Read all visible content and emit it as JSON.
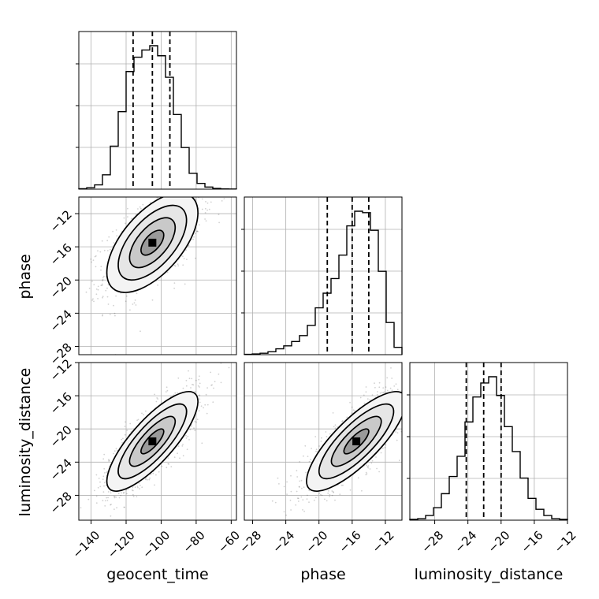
{
  "chart_data": {
    "type": "corner",
    "parameters": [
      {
        "name": "geocent_time",
        "label": "geocent_time",
        "range": [
          -147,
          -57
        ],
        "ticks": [
          -140,
          -120,
          -100,
          -80,
          -60
        ],
        "tick_labels": [
          "−140",
          "−120",
          "−100",
          "−80",
          "−60"
        ],
        "quantiles": [
          -116,
          -105,
          -95
        ]
      },
      {
        "name": "phase",
        "label": "phase",
        "range": [
          -29,
          -10
        ],
        "ticks": [
          -28,
          -24,
          -20,
          -16,
          -12
        ],
        "tick_labels": [
          "−28",
          "−24",
          "−20",
          "−16",
          "−12"
        ],
        "quantiles": [
          -19,
          -16,
          -14
        ]
      },
      {
        "name": "luminosity_distance",
        "label": "luminosity_distance",
        "range": [
          -31,
          -12
        ],
        "ticks": [
          -28,
          -24,
          -20,
          -16,
          -12
        ],
        "tick_labels": [
          "−28",
          "−24",
          "−20",
          "−16",
          "−12"
        ],
        "quantiles": [
          -24.2,
          -22.1,
          -20
        ]
      }
    ],
    "histograms": [
      {
        "param": "geocent_time",
        "bin_edges": [
          -147,
          -142.5,
          -138,
          -133.5,
          -129,
          -124.5,
          -120,
          -115.5,
          -111,
          -106.5,
          -102,
          -97.5,
          -93,
          -88.5,
          -84,
          -79.5,
          -75,
          -70.5,
          -66,
          -61.5,
          -57
        ],
        "counts": [
          0.3,
          1,
          3,
          10,
          30,
          54,
          82,
          92,
          97,
          100,
          93,
          78,
          52,
          29,
          11,
          4,
          1.5,
          0.5,
          0.2,
          0.1
        ]
      },
      {
        "param": "phase",
        "bin_edges": [
          -29,
          -28.05,
          -27.1,
          -26.15,
          -25.2,
          -24.25,
          -23.3,
          -22.35,
          -21.4,
          -20.45,
          -19.5,
          -18.55,
          -17.6,
          -16.65,
          -15.7,
          -14.75,
          -13.8,
          -12.85,
          -11.9,
          -10.95,
          -10
        ],
        "counts": [
          0.2,
          0.5,
          1,
          2,
          4,
          6,
          9,
          13,
          20,
          32,
          42,
          52,
          68,
          88,
          98,
          97,
          85,
          57,
          22,
          5
        ]
      },
      {
        "param": "luminosity_distance",
        "bin_edges": [
          -31,
          -30.05,
          -29.1,
          -28.15,
          -27.2,
          -26.25,
          -25.3,
          -24.35,
          -23.4,
          -22.45,
          -21.5,
          -20.55,
          -19.6,
          -18.65,
          -17.7,
          -16.75,
          -15.8,
          -14.85,
          -13.9,
          -12.95,
          -12
        ],
        "counts": [
          0.5,
          1,
          3,
          8,
          17,
          28,
          41,
          63,
          79,
          88,
          92,
          80,
          60,
          44,
          27,
          14,
          7,
          3,
          1,
          0.5
        ]
      }
    ],
    "joint_2d": [
      {
        "x": "geocent_time",
        "y": "phase",
        "center": [
          -105,
          -15.5
        ],
        "sd": [
          13,
          3
        ],
        "rho": 0.6
      },
      {
        "x": "geocent_time",
        "y": "luminosity_distance",
        "center": [
          -105,
          -21.5
        ],
        "sd": [
          13,
          3
        ],
        "rho": 0.8
      },
      {
        "x": "phase",
        "y": "luminosity_distance",
        "center": [
          -15.5,
          -21.5
        ],
        "sd": [
          3,
          3
        ],
        "rho": 0.8
      }
    ],
    "contour_levels_sigma": [
      0.5,
      1,
      1.5,
      2
    ],
    "grid": true
  }
}
